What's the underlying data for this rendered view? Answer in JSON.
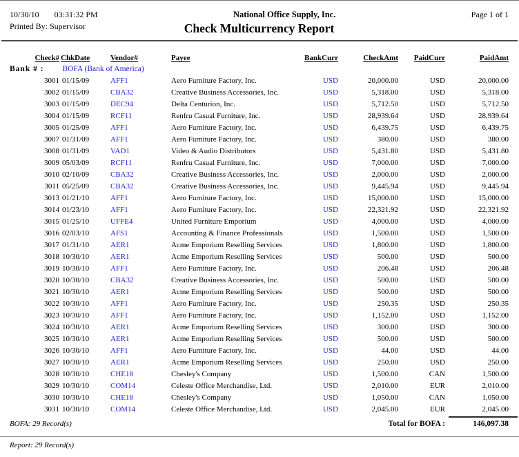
{
  "header": {
    "date": "10/30/10",
    "time": "03:31:32 PM",
    "company": "National Office Supply, Inc.",
    "page": "Page 1 of 1",
    "printed_by": "Printed By: Supervisor",
    "title": "Check Multicurrency Report"
  },
  "table": {
    "columns": [
      "Check#",
      "ChkDate",
      "Vendor#",
      "Payee",
      "BankCurr",
      "CheckAmt",
      "PaidCurr",
      "PaidAmt"
    ],
    "bank_label": "Bank # :",
    "bank_value": "BOFA (Bank of America)",
    "rows": [
      [
        "3001",
        "01/15/09",
        "AFF1",
        "Aero Furniture Factory, Inc.",
        "USD",
        "20,000.00",
        "USD",
        "20,000.00"
      ],
      [
        "3002",
        "01/15/09",
        "CBA32",
        "Creative Business Accessories, Inc.",
        "USD",
        "5,318.00",
        "USD",
        "5,318.00"
      ],
      [
        "3003",
        "01/15/09",
        "DEC94",
        "Delta Centurion, Inc.",
        "USD",
        "5,712.50",
        "USD",
        "5,712.50"
      ],
      [
        "3004",
        "01/15/09",
        "RCF11",
        "Renfru Casual Furniture, Inc.",
        "USD",
        "28,939.64",
        "USD",
        "28,939.64"
      ],
      [
        "3005",
        "01/25/09",
        "AFF1",
        "Aero Furniture Factory, Inc.",
        "USD",
        "6,439.75",
        "USD",
        "6,439.75"
      ],
      [
        "3007",
        "01/31/09",
        "AFF1",
        "Aero Furniture Factory, Inc.",
        "USD",
        "380.00",
        "USD",
        "380.00"
      ],
      [
        "3008",
        "01/31/09",
        "VAD1",
        "Video & Audio Distributors",
        "USD",
        "5,431.80",
        "USD",
        "5,431.80"
      ],
      [
        "3009",
        "05/03/09",
        "RCF11",
        "Renfru Casual Furniture, Inc.",
        "USD",
        "7,000.00",
        "USD",
        "7,000.00"
      ],
      [
        "3010",
        "02/10/09",
        "CBA32",
        "Creative Business Accessories, Inc.",
        "USD",
        "2,000.00",
        "USD",
        "2,000.00"
      ],
      [
        "3011",
        "05/25/09",
        "CBA32",
        "Creative Business Accessories, Inc.",
        "USD",
        "9,445.94",
        "USD",
        "9,445.94"
      ],
      [
        "3013",
        "01/21/10",
        "AFF1",
        "Aero Furniture Factory, Inc.",
        "USD",
        "15,000.00",
        "USD",
        "15,000.00"
      ],
      [
        "3014",
        "01/23/10",
        "AFF1",
        "Aero Furniture Factory, Inc.",
        "USD",
        "22,321.92",
        "USD",
        "22,321.92"
      ],
      [
        "3015",
        "01/25/10",
        "UFFE4",
        "United Furniture Emporium",
        "USD",
        "4,000.00",
        "USD",
        "4,000.00"
      ],
      [
        "3016",
        "02/03/10",
        "AFS1",
        "Accounting & Finance Professionals",
        "USD",
        "1,500.00",
        "USD",
        "1,500.00"
      ],
      [
        "3017",
        "01/31/10",
        "AER1",
        "Acme Emporium Reselling Services",
        "USD",
        "1,800.00",
        "USD",
        "1,800.00"
      ],
      [
        "3018",
        "10/30/10",
        "AER1",
        "Acme Emporium Reselling Services",
        "USD",
        "500.00",
        "USD",
        "500.00"
      ],
      [
        "3019",
        "10/30/10",
        "AFF1",
        "Aero Furniture Factory, Inc.",
        "USD",
        "206.48",
        "USD",
        "206.48"
      ],
      [
        "3020",
        "10/30/10",
        "CBA32",
        "Creative Business Accessories, Inc.",
        "USD",
        "500.00",
        "USD",
        "500.00"
      ],
      [
        "3021",
        "10/30/10",
        "AER1",
        "Acme Emporium Reselling Services",
        "USD",
        "500.00",
        "USD",
        "500.00"
      ],
      [
        "3022",
        "10/30/10",
        "AFF1",
        "Aero Furniture Factory, Inc.",
        "USD",
        "250.35",
        "USD",
        "250.35"
      ],
      [
        "3023",
        "10/30/10",
        "AFF1",
        "Aero Furniture Factory, Inc.",
        "USD",
        "1,152.00",
        "USD",
        "1,152.00"
      ],
      [
        "3024",
        "10/30/10",
        "AER1",
        "Acme Emporium Reselling Services",
        "USD",
        "300.00",
        "USD",
        "300.00"
      ],
      [
        "3025",
        "10/30/10",
        "AER1",
        "Acme Emporium Reselling Services",
        "USD",
        "500.00",
        "USD",
        "500.00"
      ],
      [
        "3026",
        "10/30/10",
        "AFF1",
        "Aero Furniture Factory, Inc.",
        "USD",
        "44.00",
        "USD",
        "44.00"
      ],
      [
        "3027",
        "10/30/10",
        "AER1",
        "Acme Emporium Reselling Services",
        "USD",
        "250.00",
        "USD",
        "250.00"
      ],
      [
        "3028",
        "10/30/10",
        "CHE18",
        "Chesley's Company",
        "USD",
        "1,500.00",
        "CAN",
        "1,500.00"
      ],
      [
        "3029",
        "10/30/10",
        "COM14",
        "Celeste Office Merchandise, Ltd.",
        "USD",
        "2,010.00",
        "EUR",
        "2,010.00"
      ],
      [
        "3030",
        "10/30/10",
        "CHE18",
        "Chesley's Company",
        "USD",
        "1,050.00",
        "CAN",
        "1,050.00"
      ],
      [
        "3031",
        "10/30/10",
        "COM14",
        "Celeste Office Merchandise, Ltd.",
        "USD",
        "2,045.00",
        "EUR",
        "2,045.00"
      ]
    ]
  },
  "footer": {
    "bank_records": "BOFA: 29 Record(s)",
    "total_label": "Total for BOFA :",
    "total_value": "146,097.38",
    "report_records": "Report: 29 Record(s)"
  },
  "colors": {
    "link_blue": "#2222CE"
  }
}
